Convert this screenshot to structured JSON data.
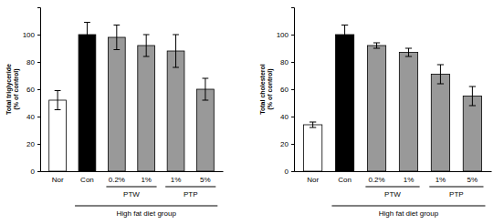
{
  "chart_data": [
    {
      "type": "bar",
      "y_label": [
        "Total triglyceride",
        "(% of control)"
      ],
      "categories": [
        "Nor",
        "Con",
        "0.2%",
        "1%",
        "1%",
        "5%"
      ],
      "values": [
        52,
        100,
        98,
        92,
        88,
        60
      ],
      "errors": [
        7,
        9,
        9,
        8,
        12,
        8
      ],
      "colors": [
        "#ffffff",
        "#000000",
        "#999999",
        "#999999",
        "#999999",
        "#999999"
      ],
      "ylim": [
        0,
        120
      ],
      "yticks": [
        0,
        20,
        40,
        60,
        80,
        100
      ],
      "groups": [
        {
          "label": "PTW",
          "categories": [
            2,
            3
          ]
        },
        {
          "label": "PTP",
          "categories": [
            4,
            5
          ]
        },
        {
          "label": "High fat diet group",
          "categories": [
            1,
            5
          ]
        }
      ]
    },
    {
      "type": "bar",
      "y_label": [
        "Total cholesterol",
        "(% of control)"
      ],
      "categories": [
        "Nor",
        "Con",
        "0.2%",
        "1%",
        "1%",
        "5%"
      ],
      "values": [
        34,
        100,
        92,
        87,
        71,
        55
      ],
      "errors": [
        2,
        7,
        2,
        3,
        7,
        7
      ],
      "colors": [
        "#ffffff",
        "#000000",
        "#999999",
        "#999999",
        "#999999",
        "#999999"
      ],
      "ylim": [
        0,
        120
      ],
      "yticks": [
        0,
        20,
        40,
        60,
        80,
        100
      ],
      "groups": [
        {
          "label": "PTW",
          "categories": [
            2,
            3
          ]
        },
        {
          "label": "PTP",
          "categories": [
            4,
            5
          ]
        },
        {
          "label": "High fat diet group",
          "categories": [
            1,
            5
          ]
        }
      ]
    }
  ]
}
